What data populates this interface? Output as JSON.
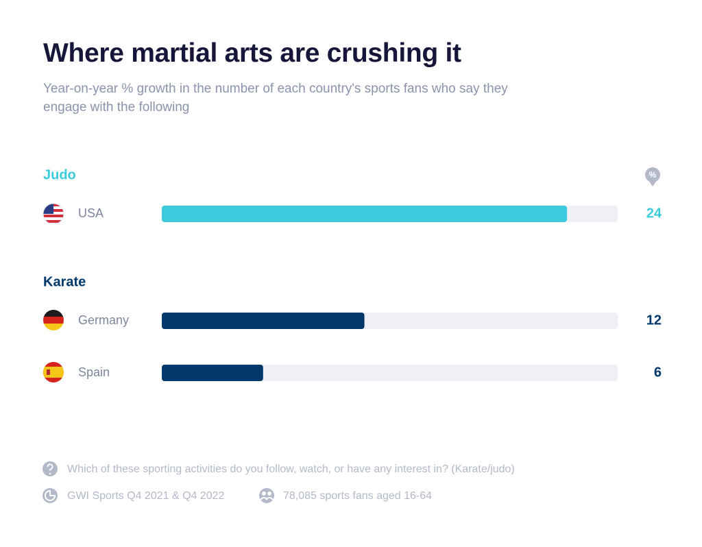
{
  "chart_data": {
    "type": "bar",
    "orientation": "horizontal",
    "title": "Where martial arts are crushing it",
    "subtitle": "Year-on-year % growth in the number of each country's sports fans who say they engage with the following",
    "unit_badge": "%",
    "groups": [
      {
        "name": "Judo",
        "color": "#3ccbdc",
        "categories": [
          "USA"
        ],
        "values": [
          24
        ]
      },
      {
        "name": "Karate",
        "color": "#00386c",
        "categories": [
          "Germany",
          "Spain"
        ],
        "values": [
          12,
          6
        ]
      }
    ],
    "xlim": [
      0,
      27
    ],
    "track_color": "#eff0f5"
  },
  "footer": {
    "question": "Which of these sporting activities do you follow, watch, or have any interest in? (Karate/judo)",
    "source": "GWI Sports Q4 2021 & Q4 2022",
    "sample": "78,085 sports fans aged 16-64"
  }
}
